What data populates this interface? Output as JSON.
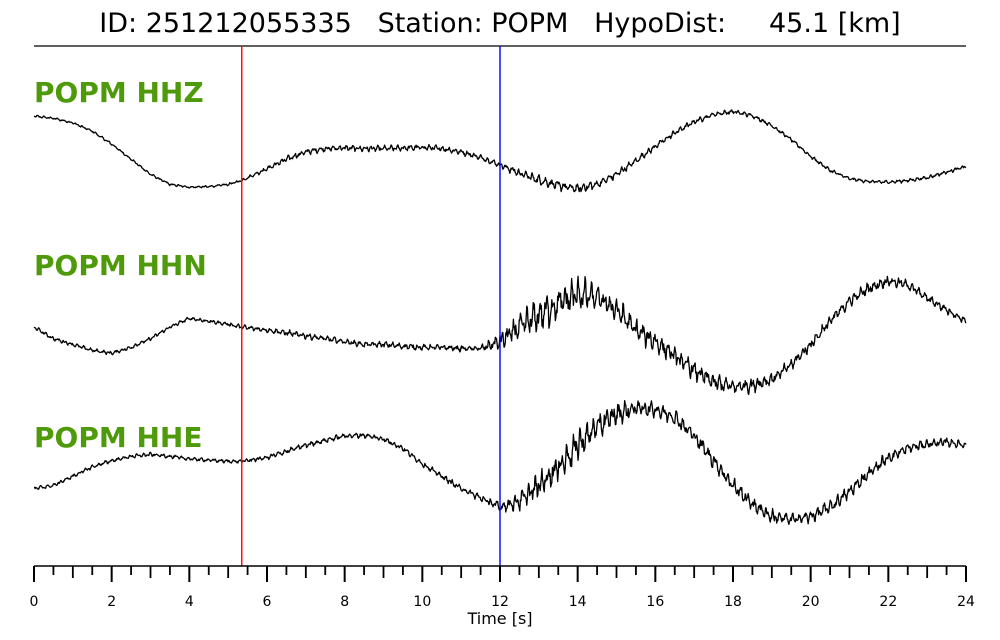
{
  "header": {
    "title": "ID: 251212055335   Station: POPM   HypoDist:     45.1 [km]"
  },
  "colors": {
    "label": "#4f9a0a",
    "trace": "#000000",
    "p_pick": "#ff0000",
    "s_pick": "#0000ff"
  },
  "chart_data": {
    "type": "line",
    "title": "ID: 251212055335   Station: POPM   HypoDist:     45.1 [km]",
    "xlabel": "Time [s]",
    "ylabel": "",
    "xlim": [
      0,
      24
    ],
    "x_tick_labels": [
      "0",
      "2",
      "4",
      "6",
      "8",
      "10",
      "12",
      "14",
      "16",
      "18",
      "20",
      "22",
      "24"
    ],
    "x_tick_values": [
      0,
      2,
      4,
      6,
      8,
      10,
      12,
      14,
      16,
      18,
      20,
      22,
      24
    ],
    "minor_tick_step": 0.5,
    "grid": false,
    "pick_lines": [
      {
        "time": 5.35,
        "color": "#ff0000"
      },
      {
        "time": 12.0,
        "color": "#0000ff"
      }
    ],
    "series": [
      {
        "name": "POPM HHZ",
        "x": [
          0,
          0.5,
          1,
          1.5,
          2,
          2.5,
          3,
          3.5,
          4,
          4.5,
          5,
          5.35,
          6,
          6.5,
          7,
          7.5,
          8,
          8.5,
          9,
          9.5,
          10,
          10.5,
          11,
          11.5,
          12,
          12.5,
          13,
          13.5,
          14,
          14.5,
          15,
          15.5,
          16,
          16.5,
          17,
          17.5,
          18,
          18.5,
          19,
          19.5,
          20,
          20.5,
          21,
          21.5,
          22,
          22.5,
          23,
          23.5,
          24
        ],
        "y": [
          0.82,
          0.78,
          0.7,
          0.55,
          0.32,
          0.05,
          -0.22,
          -0.4,
          -0.45,
          -0.44,
          -0.4,
          -0.33,
          -0.12,
          0.05,
          0.18,
          0.24,
          0.25,
          0.24,
          0.24,
          0.25,
          0.26,
          0.24,
          0.18,
          0.08,
          -0.05,
          -0.2,
          -0.32,
          -0.42,
          -0.48,
          -0.4,
          -0.22,
          0.02,
          0.28,
          0.52,
          0.72,
          0.85,
          0.9,
          0.83,
          0.65,
          0.4,
          0.1,
          -0.15,
          -0.3,
          -0.35,
          -0.36,
          -0.33,
          -0.28,
          -0.18,
          -0.08
        ],
        "noise": [
          0.02,
          0.02,
          0.02,
          0.02,
          0.02,
          0.02,
          0.02,
          0.02,
          0.02,
          0.02,
          0.02,
          0.02,
          0.04,
          0.05,
          0.05,
          0.05,
          0.05,
          0.05,
          0.05,
          0.05,
          0.05,
          0.05,
          0.05,
          0.05,
          0.05,
          0.07,
          0.08,
          0.08,
          0.08,
          0.08,
          0.07,
          0.06,
          0.05,
          0.05,
          0.05,
          0.04,
          0.04,
          0.04,
          0.03,
          0.03,
          0.03,
          0.03,
          0.03,
          0.03,
          0.03,
          0.03,
          0.03,
          0.03,
          0.03
        ]
      },
      {
        "name": "POPM HHN",
        "x": [
          0,
          0.5,
          1,
          1.5,
          2,
          2.5,
          3,
          3.5,
          4,
          4.5,
          5,
          5.35,
          6,
          6.5,
          7,
          7.5,
          8,
          8.5,
          9,
          9.5,
          10,
          10.5,
          11,
          11.5,
          12,
          12.5,
          13,
          13.5,
          14,
          14.5,
          15,
          15.5,
          16,
          16.5,
          17,
          17.5,
          18,
          18.5,
          19,
          19.5,
          20,
          20.5,
          21,
          21.5,
          22,
          22.5,
          23,
          23.5,
          24
        ],
        "y": [
          0.05,
          -0.15,
          -0.25,
          -0.35,
          -0.4,
          -0.3,
          -0.15,
          0.05,
          0.2,
          0.15,
          0.1,
          0.05,
          0.0,
          -0.05,
          -0.1,
          -0.15,
          -0.2,
          -0.25,
          -0.25,
          -0.28,
          -0.3,
          -0.3,
          -0.32,
          -0.32,
          -0.2,
          0.05,
          0.25,
          0.45,
          0.62,
          0.55,
          0.35,
          0.0,
          -0.2,
          -0.45,
          -0.7,
          -0.9,
          -0.98,
          -0.95,
          -0.85,
          -0.6,
          -0.25,
          0.15,
          0.5,
          0.72,
          0.85,
          0.78,
          0.55,
          0.35,
          0.15
        ],
        "noise": [
          0.03,
          0.03,
          0.03,
          0.03,
          0.03,
          0.03,
          0.03,
          0.03,
          0.03,
          0.03,
          0.03,
          0.04,
          0.04,
          0.05,
          0.05,
          0.05,
          0.05,
          0.05,
          0.05,
          0.05,
          0.05,
          0.05,
          0.05,
          0.05,
          0.15,
          0.22,
          0.28,
          0.3,
          0.28,
          0.24,
          0.2,
          0.18,
          0.17,
          0.16,
          0.15,
          0.14,
          0.14,
          0.12,
          0.1,
          0.1,
          0.1,
          0.1,
          0.1,
          0.1,
          0.09,
          0.08,
          0.07,
          0.07,
          0.06
        ]
      },
      {
        "name": "POPM HHE",
        "x": [
          0,
          0.5,
          1,
          1.5,
          2,
          2.5,
          3,
          3.5,
          4,
          4.5,
          5,
          5.35,
          6,
          6.5,
          7,
          7.5,
          8,
          8.5,
          9,
          9.5,
          10,
          10.5,
          11,
          11.5,
          12,
          12.5,
          13,
          13.5,
          14,
          14.5,
          15,
          15.5,
          16,
          16.5,
          17,
          17.5,
          18,
          18.5,
          19,
          19.5,
          20,
          20.5,
          21,
          21.5,
          22,
          22.5,
          23,
          23.5,
          24
        ],
        "y": [
          -0.3,
          -0.25,
          -0.1,
          0.05,
          0.15,
          0.22,
          0.25,
          0.22,
          0.18,
          0.16,
          0.14,
          0.14,
          0.2,
          0.3,
          0.4,
          0.48,
          0.55,
          0.56,
          0.5,
          0.35,
          0.1,
          -0.1,
          -0.3,
          -0.45,
          -0.6,
          -0.5,
          -0.25,
          0.05,
          0.4,
          0.7,
          0.9,
          1.0,
          0.98,
          0.85,
          0.55,
          0.15,
          -0.25,
          -0.55,
          -0.75,
          -0.8,
          -0.75,
          -0.6,
          -0.35,
          -0.05,
          0.2,
          0.35,
          0.42,
          0.45,
          0.4
        ],
        "noise": [
          0.03,
          0.03,
          0.03,
          0.03,
          0.03,
          0.03,
          0.03,
          0.03,
          0.03,
          0.03,
          0.03,
          0.03,
          0.04,
          0.04,
          0.04,
          0.04,
          0.04,
          0.04,
          0.04,
          0.04,
          0.04,
          0.05,
          0.05,
          0.06,
          0.08,
          0.14,
          0.2,
          0.24,
          0.26,
          0.22,
          0.18,
          0.14,
          0.12,
          0.12,
          0.12,
          0.12,
          0.12,
          0.12,
          0.11,
          0.1,
          0.1,
          0.1,
          0.1,
          0.1,
          0.09,
          0.08,
          0.07,
          0.07,
          0.06
        ]
      }
    ]
  }
}
